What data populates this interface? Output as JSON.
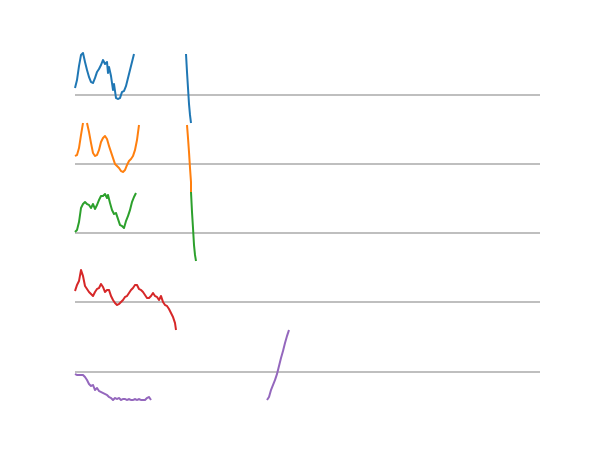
{
  "chart_data": {
    "type": "line",
    "title": "",
    "xlabel": "",
    "ylabel": "",
    "legend": "none",
    "axes_visible": false,
    "baseline_color": "#bfbfbf",
    "panels": [
      {
        "name": "",
        "color": "#1f77b4",
        "y_zero": 95,
        "y_clip_top": 54,
        "segments": [
          [
            [
              75,
              88
            ],
            [
              77,
              80
            ],
            [
              79,
              66
            ],
            [
              81,
              55
            ],
            [
              83,
              53
            ],
            [
              85,
              62
            ],
            [
              87,
              70
            ],
            [
              89,
              77
            ],
            [
              91,
              82
            ],
            [
              93,
              83
            ],
            [
              95,
              78
            ],
            [
              97,
              72
            ],
            [
              99,
              69
            ],
            [
              101,
              65
            ],
            [
              103,
              60
            ],
            [
              105,
              64
            ],
            [
              107,
              62
            ],
            [
              108,
              73
            ],
            [
              109,
              67
            ],
            [
              111,
              76
            ],
            [
              113,
              90
            ],
            [
              114,
              84
            ],
            [
              116,
              98
            ],
            [
              118,
              99
            ],
            [
              120,
              98
            ],
            [
              122,
              92
            ],
            [
              124,
              91
            ],
            [
              126,
              86
            ],
            [
              128,
              78
            ],
            [
              130,
              70
            ],
            [
              132,
              62
            ],
            [
              134,
              54
            ]
          ],
          [
            [
              186,
              54
            ],
            [
              187,
              72
            ],
            [
              188,
              88
            ],
            [
              189,
              104
            ],
            [
              190,
              115
            ],
            [
              191,
              123
            ]
          ]
        ]
      },
      {
        "name": "",
        "color": "#ff7f0e",
        "y_zero": 164,
        "y_clip_top": 123,
        "segments": [
          [
            [
              75,
              156
            ],
            [
              77,
              155
            ],
            [
              79,
              148
            ],
            [
              81,
              135
            ],
            [
              83,
              123
            ]
          ],
          [
            [
              87,
              123
            ],
            [
              89,
              132
            ],
            [
              91,
              143
            ],
            [
              93,
              153
            ],
            [
              95,
              156
            ],
            [
              97,
              155
            ],
            [
              99,
              150
            ],
            [
              101,
              142
            ],
            [
              103,
              138
            ],
            [
              105,
              136
            ],
            [
              107,
              139
            ],
            [
              109,
              146
            ],
            [
              111,
              152
            ],
            [
              113,
              158
            ],
            [
              115,
              164
            ],
            [
              117,
              166
            ],
            [
              119,
              168
            ],
            [
              121,
              171
            ],
            [
              123,
              172
            ],
            [
              125,
              170
            ],
            [
              127,
              165
            ],
            [
              129,
              161
            ],
            [
              131,
              159
            ],
            [
              133,
              156
            ],
            [
              135,
              150
            ],
            [
              137,
              140
            ],
            [
              139,
              125
            ]
          ],
          [
            [
              187,
              125
            ],
            [
              188,
              138
            ],
            [
              189,
              152
            ],
            [
              190,
              168
            ],
            [
              191,
              182
            ],
            [
              191,
              192
            ]
          ]
        ]
      },
      {
        "name": "",
        "color": "#2ca02c",
        "y_zero": 233,
        "y_clip_top": 192,
        "segments": [
          [
            [
              75,
              232
            ],
            [
              77,
              230
            ],
            [
              79,
              222
            ],
            [
              81,
              208
            ],
            [
              83,
              204
            ],
            [
              85,
              202
            ],
            [
              87,
              204
            ],
            [
              89,
              205
            ],
            [
              91,
              208
            ],
            [
              93,
              204
            ],
            [
              95,
              209
            ],
            [
              97,
              205
            ],
            [
              99,
              200
            ],
            [
              101,
              196
            ],
            [
              103,
              196
            ],
            [
              105,
              194
            ],
            [
              107,
              198
            ],
            [
              108,
              195
            ],
            [
              110,
              203
            ],
            [
              112,
              210
            ],
            [
              114,
              214
            ],
            [
              116,
              213
            ],
            [
              118,
              219
            ],
            [
              120,
              225
            ],
            [
              122,
              226
            ],
            [
              124,
              228
            ],
            [
              126,
              221
            ],
            [
              128,
              216
            ],
            [
              130,
              210
            ],
            [
              132,
              202
            ],
            [
              134,
              197
            ],
            [
              136,
              193
            ]
          ],
          [
            [
              191,
              192
            ],
            [
              192,
              212
            ],
            [
              193,
              228
            ],
            [
              194,
              245
            ],
            [
              195,
              255
            ],
            [
              196,
              261
            ]
          ]
        ]
      },
      {
        "name": "",
        "color": "#d62728",
        "y_zero": 302,
        "y_clip_top": 261,
        "segments": [
          [
            [
              75,
              291
            ],
            [
              77,
              285
            ],
            [
              79,
              281
            ],
            [
              81,
              270
            ],
            [
              83,
              276
            ],
            [
              85,
              286
            ],
            [
              87,
              289
            ],
            [
              89,
              292
            ],
            [
              91,
              294
            ],
            [
              93,
              296
            ],
            [
              95,
              292
            ],
            [
              97,
              289
            ],
            [
              99,
              288
            ],
            [
              101,
              284
            ],
            [
              103,
              287
            ],
            [
              105,
              292
            ],
            [
              107,
              290
            ],
            [
              109,
              290
            ],
            [
              111,
              296
            ],
            [
              113,
              300
            ],
            [
              115,
              303
            ],
            [
              117,
              305
            ],
            [
              119,
              304
            ],
            [
              121,
              302
            ],
            [
              123,
              300
            ],
            [
              125,
              297
            ],
            [
              127,
              296
            ],
            [
              129,
              293
            ],
            [
              131,
              290
            ],
            [
              133,
              288
            ],
            [
              135,
              285
            ],
            [
              137,
              285
            ],
            [
              139,
              289
            ],
            [
              141,
              290
            ],
            [
              143,
              292
            ],
            [
              145,
              295
            ],
            [
              147,
              298
            ],
            [
              149,
              298
            ],
            [
              151,
              296
            ],
            [
              153,
              293
            ],
            [
              155,
              296
            ],
            [
              157,
              297
            ],
            [
              159,
              300
            ],
            [
              161,
              296
            ],
            [
              163,
              302
            ],
            [
              165,
              305
            ],
            [
              167,
              306
            ],
            [
              169,
              309
            ],
            [
              171,
              313
            ],
            [
              173,
              317
            ],
            [
              175,
              323
            ],
            [
              176,
              330
            ]
          ]
        ]
      },
      {
        "name": "",
        "color": "#9467bd",
        "y_zero": 372,
        "y_clip_top": 330,
        "segments": [
          [
            [
              75,
              374
            ],
            [
              77,
              375
            ],
            [
              79,
              375
            ],
            [
              81,
              375
            ],
            [
              83,
              375
            ],
            [
              85,
              377
            ],
            [
              87,
              380
            ],
            [
              89,
              384
            ],
            [
              91,
              386
            ],
            [
              93,
              385
            ],
            [
              95,
              390
            ],
            [
              97,
              388
            ],
            [
              99,
              391
            ],
            [
              101,
              392
            ],
            [
              103,
              393
            ],
            [
              105,
              394
            ],
            [
              107,
              395
            ],
            [
              109,
              397
            ],
            [
              111,
              398
            ],
            [
              113,
              400
            ],
            [
              115,
              398
            ],
            [
              117,
              399
            ],
            [
              119,
              398
            ],
            [
              121,
              400
            ],
            [
              123,
              399
            ],
            [
              125,
              399
            ],
            [
              127,
              400
            ],
            [
              129,
              399
            ],
            [
              131,
              400
            ],
            [
              133,
              400
            ],
            [
              135,
              399
            ],
            [
              137,
              400
            ],
            [
              139,
              399
            ],
            [
              141,
              400
            ],
            [
              143,
              400
            ],
            [
              145,
              400
            ],
            [
              147,
              398
            ],
            [
              149,
              397
            ],
            [
              151,
              400
            ]
          ],
          [
            [
              267,
              400
            ],
            [
              269,
              397
            ],
            [
              271,
              390
            ],
            [
              273,
              385
            ],
            [
              275,
              380
            ],
            [
              277,
              374
            ],
            [
              279,
              366
            ],
            [
              281,
              358
            ],
            [
              283,
              351
            ],
            [
              285,
              343
            ],
            [
              287,
              336
            ],
            [
              289,
              330
            ]
          ]
        ]
      }
    ]
  }
}
